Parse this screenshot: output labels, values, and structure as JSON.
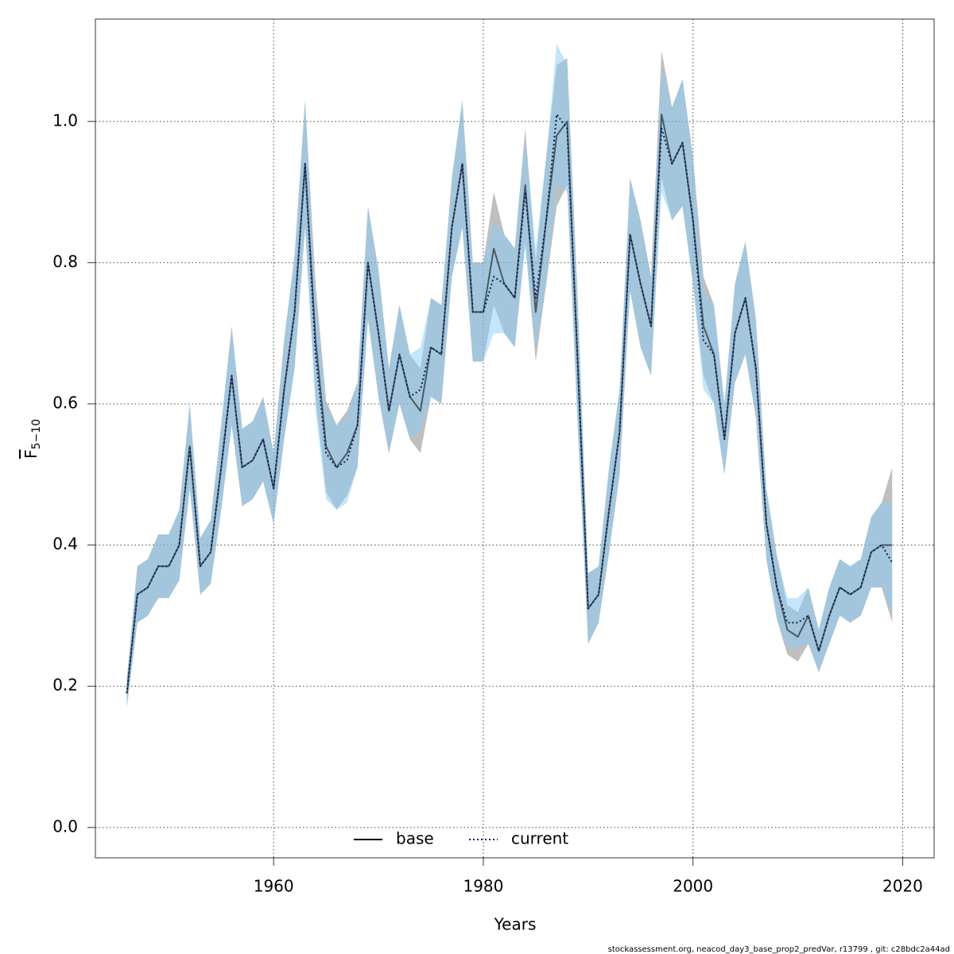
{
  "chart_data": {
    "type": "line-band",
    "xlabel": "Years",
    "ylabel": {
      "symbol": "F",
      "subscript": "5−10"
    },
    "footer": "stockassessment.org, neacod_day3_base_prop2_predVar, r13799 , git: c28bdc2a44ad",
    "x": [
      1946,
      1947,
      1948,
      1949,
      1950,
      1951,
      1952,
      1953,
      1954,
      1955,
      1956,
      1957,
      1958,
      1959,
      1960,
      1961,
      1962,
      1963,
      1964,
      1965,
      1966,
      1967,
      1968,
      1969,
      1970,
      1971,
      1972,
      1973,
      1974,
      1975,
      1976,
      1977,
      1978,
      1979,
      1980,
      1981,
      1982,
      1983,
      1984,
      1985,
      1986,
      1987,
      1988,
      1989,
      1990,
      1991,
      1992,
      1993,
      1994,
      1995,
      1996,
      1997,
      1998,
      1999,
      2000,
      2001,
      2002,
      2003,
      2004,
      2005,
      2006,
      2007,
      2008,
      2009,
      2010,
      2011,
      2012,
      2013,
      2014,
      2015,
      2016,
      2017,
      2018,
      2019
    ],
    "series": [
      {
        "name": "base",
        "color": "#000000",
        "band_color": "rgba(128,128,128,0.5)",
        "dash": "solid",
        "values": [
          0.19,
          0.33,
          0.34,
          0.37,
          0.37,
          0.4,
          0.54,
          0.37,
          0.39,
          0.51,
          0.64,
          0.51,
          0.52,
          0.55,
          0.48,
          0.62,
          0.73,
          0.94,
          0.69,
          0.54,
          0.51,
          0.53,
          0.57,
          0.8,
          0.7,
          0.59,
          0.67,
          0.61,
          0.59,
          0.68,
          0.67,
          0.85,
          0.94,
          0.73,
          0.73,
          0.82,
          0.77,
          0.75,
          0.91,
          0.73,
          0.86,
          0.98,
          1.0,
          0.66,
          0.31,
          0.33,
          0.45,
          0.56,
          0.84,
          0.77,
          0.71,
          1.01,
          0.94,
          0.97,
          0.86,
          0.71,
          0.67,
          0.55,
          0.7,
          0.75,
          0.65,
          0.43,
          0.34,
          0.28,
          0.27,
          0.3,
          0.25,
          0.3,
          0.34,
          0.33,
          0.34,
          0.39,
          0.4,
          0.4
        ],
        "lower": [
          0.17,
          0.29,
          0.3,
          0.325,
          0.325,
          0.35,
          0.48,
          0.33,
          0.345,
          0.45,
          0.57,
          0.455,
          0.465,
          0.49,
          0.43,
          0.55,
          0.65,
          0.85,
          0.61,
          0.475,
          0.45,
          0.47,
          0.51,
          0.72,
          0.61,
          0.53,
          0.6,
          0.55,
          0.53,
          0.61,
          0.6,
          0.78,
          0.85,
          0.66,
          0.66,
          0.74,
          0.7,
          0.68,
          0.83,
          0.66,
          0.77,
          0.88,
          0.91,
          0.57,
          0.26,
          0.29,
          0.39,
          0.5,
          0.76,
          0.68,
          0.64,
          0.92,
          0.86,
          0.88,
          0.77,
          0.64,
          0.6,
          0.5,
          0.63,
          0.67,
          0.58,
          0.38,
          0.295,
          0.245,
          0.235,
          0.26,
          0.22,
          0.26,
          0.3,
          0.29,
          0.3,
          0.34,
          0.34,
          0.29
        ],
        "upper": [
          0.21,
          0.37,
          0.38,
          0.415,
          0.415,
          0.45,
          0.6,
          0.41,
          0.435,
          0.57,
          0.71,
          0.565,
          0.575,
          0.61,
          0.53,
          0.69,
          0.81,
          1.03,
          0.77,
          0.605,
          0.57,
          0.59,
          0.63,
          0.88,
          0.79,
          0.65,
          0.74,
          0.67,
          0.65,
          0.75,
          0.74,
          0.92,
          1.03,
          0.8,
          0.8,
          0.9,
          0.84,
          0.82,
          0.99,
          0.8,
          0.95,
          1.08,
          1.09,
          0.75,
          0.36,
          0.37,
          0.51,
          0.62,
          0.92,
          0.86,
          0.78,
          1.1,
          1.02,
          1.06,
          0.95,
          0.78,
          0.74,
          0.6,
          0.77,
          0.83,
          0.72,
          0.48,
          0.385,
          0.315,
          0.305,
          0.34,
          0.28,
          0.34,
          0.38,
          0.37,
          0.38,
          0.44,
          0.46,
          0.51
        ]
      },
      {
        "name": "current",
        "color": "#0a1e5a",
        "band_color": "rgba(135,206,250,0.5)",
        "dash": "dotted",
        "values": [
          0.19,
          0.33,
          0.34,
          0.37,
          0.37,
          0.4,
          0.54,
          0.37,
          0.39,
          0.51,
          0.64,
          0.51,
          0.52,
          0.55,
          0.48,
          0.62,
          0.73,
          0.94,
          0.67,
          0.53,
          0.51,
          0.52,
          0.57,
          0.8,
          0.7,
          0.59,
          0.67,
          0.61,
          0.62,
          0.68,
          0.67,
          0.85,
          0.94,
          0.73,
          0.73,
          0.78,
          0.77,
          0.75,
          0.9,
          0.75,
          0.86,
          1.01,
          0.99,
          0.66,
          0.31,
          0.33,
          0.45,
          0.56,
          0.84,
          0.77,
          0.71,
          0.99,
          0.94,
          0.97,
          0.86,
          0.69,
          0.67,
          0.55,
          0.7,
          0.75,
          0.65,
          0.43,
          0.34,
          0.29,
          0.29,
          0.3,
          0.25,
          0.3,
          0.34,
          0.33,
          0.34,
          0.39,
          0.4,
          0.375
        ],
        "lower": [
          0.17,
          0.29,
          0.3,
          0.325,
          0.325,
          0.35,
          0.48,
          0.33,
          0.345,
          0.45,
          0.57,
          0.455,
          0.465,
          0.49,
          0.43,
          0.55,
          0.65,
          0.85,
          0.59,
          0.465,
          0.45,
          0.46,
          0.51,
          0.72,
          0.61,
          0.53,
          0.6,
          0.55,
          0.56,
          0.61,
          0.6,
          0.78,
          0.85,
          0.66,
          0.66,
          0.7,
          0.7,
          0.68,
          0.82,
          0.68,
          0.77,
          0.91,
          0.9,
          0.57,
          0.26,
          0.29,
          0.39,
          0.5,
          0.76,
          0.68,
          0.64,
          0.9,
          0.86,
          0.88,
          0.77,
          0.62,
          0.6,
          0.5,
          0.63,
          0.67,
          0.58,
          0.38,
          0.295,
          0.255,
          0.255,
          0.26,
          0.22,
          0.26,
          0.3,
          0.29,
          0.3,
          0.34,
          0.34,
          0.3
        ],
        "upper": [
          0.21,
          0.37,
          0.38,
          0.415,
          0.415,
          0.45,
          0.6,
          0.41,
          0.435,
          0.57,
          0.71,
          0.565,
          0.575,
          0.61,
          0.53,
          0.69,
          0.81,
          1.03,
          0.75,
          0.595,
          0.57,
          0.58,
          0.63,
          0.88,
          0.79,
          0.65,
          0.74,
          0.67,
          0.68,
          0.75,
          0.74,
          0.92,
          1.03,
          0.8,
          0.8,
          0.86,
          0.84,
          0.82,
          0.98,
          0.82,
          0.95,
          1.11,
          1.08,
          0.75,
          0.36,
          0.37,
          0.51,
          0.62,
          0.92,
          0.86,
          0.78,
          1.08,
          1.02,
          1.06,
          0.95,
          0.76,
          0.74,
          0.6,
          0.77,
          0.83,
          0.72,
          0.48,
          0.385,
          0.325,
          0.325,
          0.34,
          0.28,
          0.34,
          0.38,
          0.37,
          0.38,
          0.44,
          0.46,
          0.46
        ]
      }
    ],
    "xlim": [
      1943.0,
      2023.0
    ],
    "xticks": [
      1960,
      1980,
      2000,
      2020
    ],
    "ylim": [
      -0.043,
      1.145
    ],
    "yticks": [
      {
        "value": 0,
        "label": "0.0"
      },
      0.2,
      0.4,
      0.6,
      0.8,
      {
        "value": 1,
        "label": "1.0"
      }
    ],
    "grid": true,
    "legend": "bottom"
  }
}
